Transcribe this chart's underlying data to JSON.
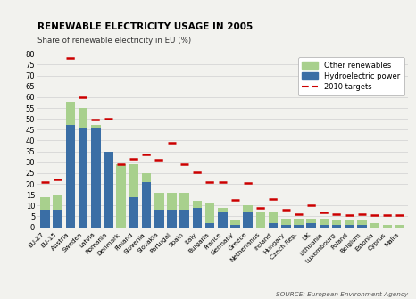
{
  "title": "RENEWABLE ELECTRICITY USAGE IN 2005",
  "subtitle": "Share of renewable electricity in EU (%)",
  "source": "SOURCE: European Environment Agency",
  "categories": [
    "EU-27",
    "EU-15",
    "Austria",
    "Sweden",
    "Latvia",
    "Romania",
    "Denmark",
    "Finland",
    "Slovenia",
    "Slovakia",
    "Portugal",
    "Spain",
    "Italy",
    "Bulgaria",
    "France",
    "Germany",
    "Greece",
    "Netherlands",
    "Ireland",
    "Hungary",
    "Czech Rep.",
    "UK",
    "Lithuania",
    "Luxembourg",
    "Poland",
    "Belgium",
    "Estonia",
    "Cyprus",
    "Malta"
  ],
  "hydro": [
    8,
    8,
    47,
    46,
    46,
    35,
    0,
    14,
    21,
    8,
    8,
    8,
    9,
    2,
    7,
    1,
    7,
    0,
    2,
    1,
    1,
    2,
    1,
    1,
    1,
    1,
    0,
    0,
    0
  ],
  "other": [
    6,
    7,
    11,
    9,
    1,
    0,
    29,
    15,
    4,
    8,
    8,
    8,
    3,
    9,
    2,
    2,
    3,
    7,
    5,
    3,
    3,
    2,
    3,
    2,
    2,
    2,
    2,
    1,
    1
  ],
  "targets": [
    21,
    22,
    78,
    60,
    49.5,
    50,
    29,
    31.5,
    33.5,
    31,
    39,
    29,
    25.5,
    21,
    21,
    12.5,
    20.5,
    9,
    13,
    8,
    6,
    10,
    7,
    6,
    5.5,
    6,
    5.5,
    5.5,
    5.5
  ],
  "hydro_color": "#3a6ea5",
  "other_color": "#a8d08d",
  "target_color": "#cc0000",
  "bar_width": 0.75,
  "ylim": [
    0,
    80
  ],
  "yticks": [
    0,
    5,
    10,
    15,
    20,
    25,
    30,
    35,
    40,
    45,
    50,
    55,
    60,
    65,
    70,
    75,
    80
  ],
  "background_color": "#f2f2ee",
  "grid_color": "#d0d0d0"
}
